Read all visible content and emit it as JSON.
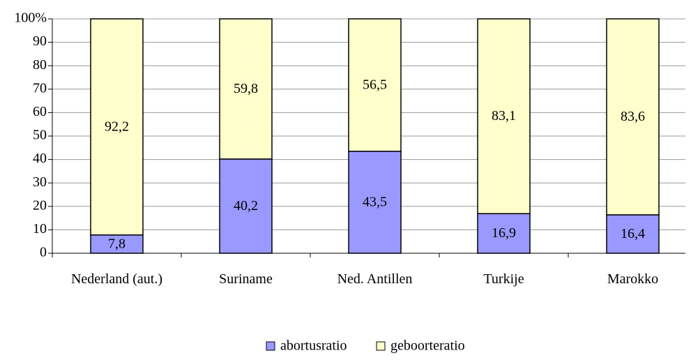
{
  "chart_data": {
    "type": "stacked_bar",
    "categories": [
      "Nederland (aut.)",
      "Suriname",
      "Ned. Antillen",
      "Turkije",
      "Marokko"
    ],
    "series": [
      {
        "name": "abortusratio",
        "color": "#9999ff",
        "values": [
          7.8,
          40.2,
          43.5,
          16.9,
          16.4
        ],
        "value_labels": [
          "7,8",
          "40,2",
          "43,5",
          "16,9",
          "16,4"
        ]
      },
      {
        "name": "geboorteratio",
        "color": "#ffffcc",
        "values": [
          92.2,
          59.8,
          56.5,
          83.1,
          83.6
        ],
        "value_labels": [
          "92,2",
          "59,8",
          "56,5",
          "83,1",
          "83,6"
        ]
      }
    ],
    "ylim": [
      0,
      100
    ],
    "yticks": [
      0,
      10,
      20,
      30,
      40,
      50,
      60,
      70,
      80,
      90,
      {
        "value": 100,
        "label": "100%"
      }
    ],
    "grid": true,
    "legend": "bottom"
  }
}
